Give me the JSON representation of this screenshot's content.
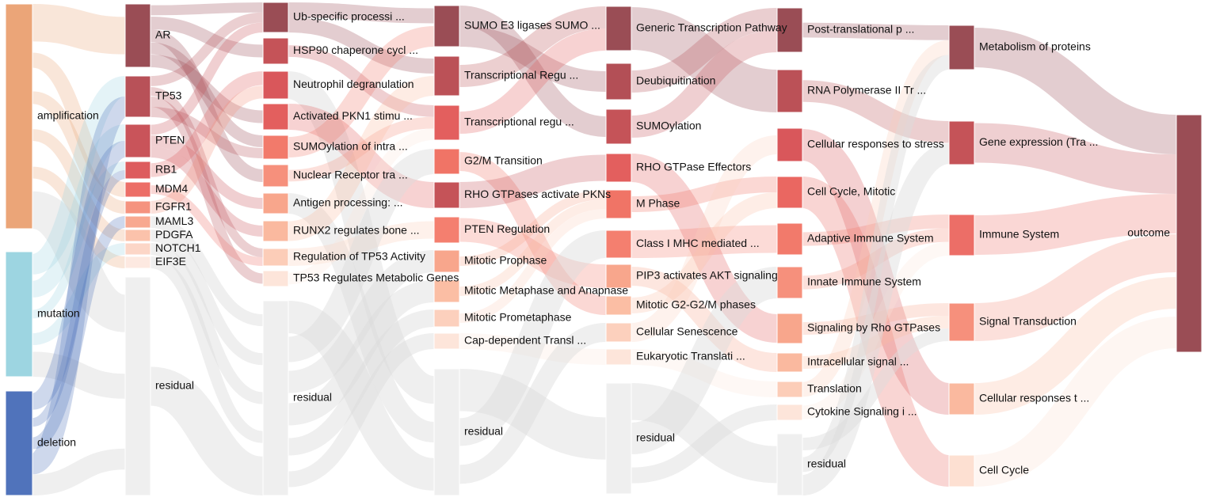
{
  "columns": [
    {
      "nodes": [
        {
          "id": "c0-amplification",
          "label": "amplification",
          "color": "#eba578"
        },
        {
          "id": "c0-mutation",
          "label": "mutation",
          "color": "#9dd5e1"
        },
        {
          "id": "c0-deletion",
          "label": "deletion",
          "color": "#5073bb"
        }
      ]
    },
    {
      "nodes": [
        {
          "id": "c1-ar",
          "label": "AR",
          "color": "#9a4d55"
        },
        {
          "id": "c1-tp53",
          "label": "TP53",
          "color": "#b85158"
        },
        {
          "id": "c1-pten",
          "label": "PTEN",
          "color": "#c9545a"
        },
        {
          "id": "c1-rb1",
          "label": "RB1",
          "color": "#dd5c5e"
        },
        {
          "id": "c1-mdm4",
          "label": "MDM4",
          "color": "#ec6e67"
        },
        {
          "id": "c1-fgfr1",
          "label": "FGFR1",
          "color": "#f5937f"
        },
        {
          "id": "c1-maml3",
          "label": "MAML3",
          "color": "#f8a890"
        },
        {
          "id": "c1-pdgfa",
          "label": "PDGFA",
          "color": "#fbc2ab"
        },
        {
          "id": "c1-notch1",
          "label": "NOTCH1",
          "color": "#fcd6c7"
        },
        {
          "id": "c1-eif3e",
          "label": "EIF3E",
          "color": "#fde9e1"
        },
        {
          "id": "c1-residual",
          "label": "residual",
          "color": "#efefef"
        }
      ]
    },
    {
      "nodes": [
        {
          "id": "c2-ub",
          "label": "Ub-specific processi ...",
          "color": "#9a4d55"
        },
        {
          "id": "c2-hsp90",
          "label": "HSP90 chaperone cycl ...",
          "color": "#c55358"
        },
        {
          "id": "c2-neutrophil",
          "label": "Neutrophil degranulation",
          "color": "#d9575b"
        },
        {
          "id": "c2-pkn1",
          "label": "Activated PKN1 stimu ...",
          "color": "#e35f5e"
        },
        {
          "id": "c2-sumo-intra",
          "label": "SUMOylation of intra ...",
          "color": "#f27a6b"
        },
        {
          "id": "c2-nuclear",
          "label": "Nuclear Receptor tra ...",
          "color": "#f6907c"
        },
        {
          "id": "c2-antigen",
          "label": "Antigen processing: ...",
          "color": "#f8a68c"
        },
        {
          "id": "c2-runx2",
          "label": "RUNX2 regulates bone ...",
          "color": "#fab99f"
        },
        {
          "id": "c2-tp53act",
          "label": "Regulation of TP53 Activity",
          "color": "#fccdb8"
        },
        {
          "id": "c2-tp53meta",
          "label": "TP53 Regulates Metabolic Genes",
          "color": "#fde5da"
        },
        {
          "id": "c2-residual",
          "label": "residual",
          "color": "#efefef"
        }
      ]
    },
    {
      "nodes": [
        {
          "id": "c3-sumo-e3",
          "label": "SUMO E3 ligases SUMO ...",
          "color": "#9a4d55"
        },
        {
          "id": "c3-trans-regu1",
          "label": "Transcriptional Regu ...",
          "color": "#bb5157"
        },
        {
          "id": "c3-trans-regu2",
          "label": "Transcriptional regu ...",
          "color": "#e35f5e"
        },
        {
          "id": "c3-g2m",
          "label": "G2/M Transition",
          "color": "#f07466"
        },
        {
          "id": "c3-rho-pkn",
          "label": "RHO GTPases activate PKNs",
          "color": "#c55358"
        },
        {
          "id": "c3-pten-reg",
          "label": "PTEN Regulation",
          "color": "#f47f6f"
        },
        {
          "id": "c3-prophase",
          "label": "Mitotic Prophase",
          "color": "#f8a68c"
        },
        {
          "id": "c3-metaphase",
          "label": "Mitotic Metaphase and Anapnase",
          "color": "#fbbea4"
        },
        {
          "id": "c3-prometa",
          "label": "Mitotic Prometaphase",
          "color": "#fcd0bd"
        },
        {
          "id": "c3-cap",
          "label": "Cap-dependent Transl ...",
          "color": "#fde5da"
        },
        {
          "id": "c3-residual",
          "label": "residual",
          "color": "#efefef"
        }
      ]
    },
    {
      "nodes": [
        {
          "id": "c4-generic",
          "label": "Generic Transcription Pathway",
          "color": "#9a4d55"
        },
        {
          "id": "c4-deubiq",
          "label": "Deubiquitination",
          "color": "#b34f56"
        },
        {
          "id": "c4-sumoylation",
          "label": "SUMOylation",
          "color": "#c55358"
        },
        {
          "id": "c4-rho-eff",
          "label": "RHO GTPase Effectors",
          "color": "#e35f5e"
        },
        {
          "id": "c4-mphase",
          "label": "M Phase",
          "color": "#f07466"
        },
        {
          "id": "c4-mhc",
          "label": "Class I MHC mediated ...",
          "color": "#f47f6f"
        },
        {
          "id": "c4-pip3",
          "label": "PIP3 activates AKT signaling",
          "color": "#f8a68c"
        },
        {
          "id": "c4-g2m-phases",
          "label": "Mitotic G2-G2/M phases",
          "color": "#fbbea4"
        },
        {
          "id": "c4-senescence",
          "label": "Cellular Senescence",
          "color": "#fcd0bd"
        },
        {
          "id": "c4-eukaryotic",
          "label": "Eukaryotic Translati ...",
          "color": "#fde5da"
        },
        {
          "id": "c4-residual",
          "label": "residual",
          "color": "#efefef"
        }
      ]
    },
    {
      "nodes": [
        {
          "id": "c5-posttrans",
          "label": "Post-translational p ...",
          "color": "#9a4d55"
        },
        {
          "id": "c5-rnapol",
          "label": "RNA Polymerase II Tr ...",
          "color": "#bb5157"
        },
        {
          "id": "c5-stress",
          "label": "Cellular responses to stress",
          "color": "#d9575b"
        },
        {
          "id": "c5-cellcycle-mitotic",
          "label": "Cell Cycle, Mitotic",
          "color": "#ea6761"
        },
        {
          "id": "c5-adaptive",
          "label": "Adaptive Immune System",
          "color": "#f27a6b"
        },
        {
          "id": "c5-innate",
          "label": "Innate Immune System",
          "color": "#f6907c"
        },
        {
          "id": "c5-rho",
          "label": "Signaling by Rho GTPases",
          "color": "#f8a68c"
        },
        {
          "id": "c5-intracellular",
          "label": "Intracellular signal ...",
          "color": "#fab99f"
        },
        {
          "id": "c5-translation",
          "label": "Translation",
          "color": "#fccdb8"
        },
        {
          "id": "c5-cytokine",
          "label": "Cytokine Signaling i ...",
          "color": "#fde5da"
        },
        {
          "id": "c5-residual",
          "label": "residual",
          "color": "#efefef"
        }
      ]
    },
    {
      "nodes": [
        {
          "id": "c6-metabolism",
          "label": "Metabolism of proteins",
          "color": "#9a4d55"
        },
        {
          "id": "c6-gene-expr",
          "label": "Gene expression (Tra ...",
          "color": "#c55358"
        },
        {
          "id": "c6-immune",
          "label": "Immune System",
          "color": "#ec6e67"
        },
        {
          "id": "c6-signal",
          "label": "Signal Transduction",
          "color": "#f6907c"
        },
        {
          "id": "c6-cell-resp",
          "label": "Cellular responses t ...",
          "color": "#fab99f"
        },
        {
          "id": "c6-cell-cycle",
          "label": "Cell Cycle",
          "color": "#fde0d2"
        }
      ]
    },
    {
      "nodes": [
        {
          "id": "c7-outcome",
          "label": "outcome",
          "color": "#9a4d55"
        }
      ]
    }
  ],
  "links": [
    [
      "c0-amplification",
      "c1-ar"
    ],
    [
      "c0-amplification",
      "c1-mdm4"
    ],
    [
      "c0-amplification",
      "c1-fgfr1"
    ],
    [
      "c0-amplification",
      "c1-pdgfa"
    ],
    [
      "c0-amplification",
      "c1-eif3e"
    ],
    [
      "c0-amplification",
      "c1-residual"
    ],
    [
      "c0-mutation",
      "c1-tp53"
    ],
    [
      "c0-mutation",
      "c1-pten"
    ],
    [
      "c0-mutation",
      "c1-rb1"
    ],
    [
      "c0-mutation",
      "c1-notch1"
    ],
    [
      "c0-mutation",
      "c1-residual"
    ],
    [
      "c0-deletion",
      "c1-pten"
    ],
    [
      "c0-deletion",
      "c1-rb1"
    ],
    [
      "c0-deletion",
      "c1-maml3"
    ],
    [
      "c0-deletion",
      "c1-tp53"
    ],
    [
      "c0-deletion",
      "c1-residual"
    ],
    [
      "c1-ar",
      "c2-ub"
    ],
    [
      "c1-ar",
      "c2-hsp90"
    ],
    [
      "c1-ar",
      "c2-nuclear"
    ],
    [
      "c1-ar",
      "c2-sumo-intra"
    ],
    [
      "c1-ar",
      "c2-pkn1"
    ],
    [
      "c1-tp53",
      "c2-ub"
    ],
    [
      "c1-tp53",
      "c2-tp53act"
    ],
    [
      "c1-tp53",
      "c2-tp53meta"
    ],
    [
      "c1-tp53",
      "c2-sumo-intra"
    ],
    [
      "c1-pten",
      "c2-ub"
    ],
    [
      "c1-pten",
      "c2-antigen"
    ],
    [
      "c1-pten",
      "c2-runx2"
    ],
    [
      "c1-rb1",
      "c2-neutrophil"
    ],
    [
      "c1-mdm4",
      "c2-tp53act"
    ],
    [
      "c1-fgfr1",
      "c2-neutrophil"
    ],
    [
      "c1-maml3",
      "c2-residual"
    ],
    [
      "c1-pdgfa",
      "c2-residual"
    ],
    [
      "c1-notch1",
      "c2-residual"
    ],
    [
      "c1-eif3e",
      "c2-residual"
    ],
    [
      "c1-residual",
      "c2-residual"
    ],
    [
      "c2-ub",
      "c3-sumo-e3"
    ],
    [
      "c2-ub",
      "c3-trans-regu1"
    ],
    [
      "c2-hsp90",
      "c3-trans-regu2"
    ],
    [
      "c2-neutrophil",
      "c3-residual"
    ],
    [
      "c2-pkn1",
      "c3-rho-pkn"
    ],
    [
      "c2-sumo-intra",
      "c3-sumo-e3"
    ],
    [
      "c2-nuclear",
      "c3-trans-regu2"
    ],
    [
      "c2-antigen",
      "c3-residual"
    ],
    [
      "c2-runx2",
      "c3-trans-regu1"
    ],
    [
      "c2-tp53act",
      "c3-pten-reg"
    ],
    [
      "c2-tp53meta",
      "c3-trans-regu2"
    ],
    [
      "c2-residual",
      "c3-residual"
    ],
    [
      "c2-residual",
      "c3-g2m"
    ],
    [
      "c2-residual",
      "c3-prophase"
    ],
    [
      "c2-residual",
      "c3-metaphase"
    ],
    [
      "c2-residual",
      "c3-prometa"
    ],
    [
      "c2-residual",
      "c3-cap"
    ],
    [
      "c3-sumo-e3",
      "c4-sumoylation"
    ],
    [
      "c3-sumo-e3",
      "c4-deubiq"
    ],
    [
      "c3-trans-regu1",
      "c4-generic"
    ],
    [
      "c3-trans-regu2",
      "c4-generic"
    ],
    [
      "c3-g2m",
      "c4-g2m-phases"
    ],
    [
      "c3-rho-pkn",
      "c4-rho-eff"
    ],
    [
      "c3-pten-reg",
      "c4-pip3"
    ],
    [
      "c3-prophase",
      "c4-mphase"
    ],
    [
      "c3-metaphase",
      "c4-mphase"
    ],
    [
      "c3-prometa",
      "c4-mphase"
    ],
    [
      "c3-cap",
      "c4-eukaryotic"
    ],
    [
      "c3-residual",
      "c4-residual"
    ],
    [
      "c3-residual",
      "c4-mhc"
    ],
    [
      "c3-residual",
      "c4-senescence"
    ],
    [
      "c4-generic",
      "c5-rnapol"
    ],
    [
      "c4-deubiq",
      "c5-posttrans"
    ],
    [
      "c4-sumoylation",
      "c5-posttrans"
    ],
    [
      "c4-rho-eff",
      "c5-rho"
    ],
    [
      "c4-mphase",
      "c5-cellcycle-mitotic"
    ],
    [
      "c4-mhc",
      "c5-adaptive"
    ],
    [
      "c4-pip3",
      "c5-intracellular"
    ],
    [
      "c4-g2m-phases",
      "c5-cellcycle-mitotic"
    ],
    [
      "c4-senescence",
      "c5-stress"
    ],
    [
      "c4-eukaryotic",
      "c5-translation"
    ],
    [
      "c4-residual",
      "c5-residual"
    ],
    [
      "c4-residual",
      "c5-innate"
    ],
    [
      "c4-residual",
      "c5-cytokine"
    ],
    [
      "c5-posttrans",
      "c6-metabolism"
    ],
    [
      "c5-rnapol",
      "c6-gene-expr"
    ],
    [
      "c5-stress",
      "c6-cell-resp"
    ],
    [
      "c5-cellcycle-mitotic",
      "c6-cell-cycle"
    ],
    [
      "c5-adaptive",
      "c6-immune"
    ],
    [
      "c5-innate",
      "c6-immune"
    ],
    [
      "c5-rho",
      "c6-signal"
    ],
    [
      "c5-intracellular",
      "c6-signal"
    ],
    [
      "c5-translation",
      "c6-metabolism"
    ],
    [
      "c5-cytokine",
      "c6-immune"
    ],
    [
      "c5-residual",
      "c6-signal"
    ],
    [
      "c5-residual",
      "c6-metabolism"
    ],
    [
      "c5-residual",
      "c6-gene-expr"
    ],
    [
      "c6-metabolism",
      "c7-outcome"
    ],
    [
      "c6-gene-expr",
      "c7-outcome"
    ],
    [
      "c6-immune",
      "c7-outcome"
    ],
    [
      "c6-signal",
      "c7-outcome"
    ],
    [
      "c6-cell-resp",
      "c7-outcome"
    ],
    [
      "c6-cell-cycle",
      "c7-outcome"
    ]
  ]
}
